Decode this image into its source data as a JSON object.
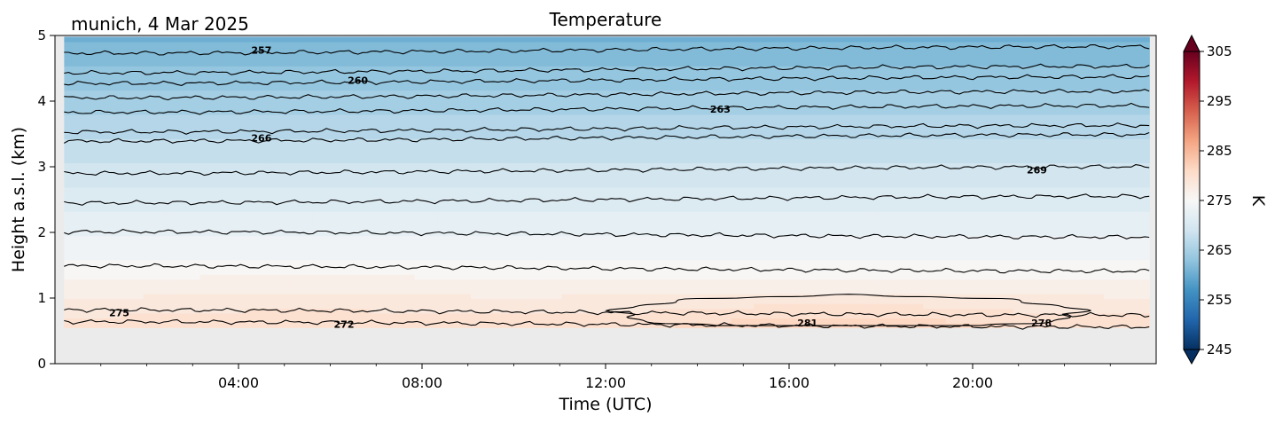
{
  "chart_data": {
    "type": "heatmap",
    "title": "Temperature",
    "subtitle": "munich, 4 Mar 2025",
    "xlabel": "Time (UTC)",
    "ylabel": "Height a.s.l. (km)",
    "x_range_hours": [
      0,
      24
    ],
    "x_ticks": [
      "04:00",
      "08:00",
      "12:00",
      "16:00",
      "20:00"
    ],
    "x_tick_hours": [
      4,
      8,
      12,
      16,
      20
    ],
    "ylim": [
      0,
      5
    ],
    "y_ticks": [
      "0",
      "1",
      "2",
      "3",
      "4",
      "5"
    ],
    "data_bottom_km": 0.55,
    "colorbar": {
      "label": "K",
      "min": 245,
      "max": 305,
      "ticks": [
        "245",
        "255",
        "265",
        "275",
        "285",
        "295",
        "305"
      ],
      "extend": "both",
      "colormap": "RdBu_r"
    },
    "contour_levels": [
      257,
      260,
      263,
      266,
      269,
      272,
      275,
      278,
      281
    ],
    "isotherms": [
      {
        "level": 257,
        "height_km": 4.78,
        "label": "257",
        "label_hour": 4.5
      },
      {
        "level": 258.5,
        "height_km": 4.48,
        "label": "",
        "label_hour": null
      },
      {
        "level": 260,
        "height_km": 4.32,
        "label": "260",
        "label_hour": 6.6
      },
      {
        "level": 261.5,
        "height_km": 4.1,
        "label": "",
        "label_hour": null
      },
      {
        "level": 263,
        "height_km": 3.88,
        "label": "263",
        "label_hour": 14.5
      },
      {
        "level": 264.5,
        "height_km": 3.58,
        "label": "",
        "label_hour": null
      },
      {
        "level": 266,
        "height_km": 3.44,
        "label": "266",
        "label_hour": 4.5
      },
      {
        "level": 269,
        "height_km": 2.95,
        "label": "269",
        "label_hour": 21.4
      },
      {
        "level": 270.5,
        "height_km": 2.5,
        "label": "",
        "label_hour": null
      },
      {
        "level": 272,
        "height_km": 1.97,
        "label": "",
        "label_hour": null
      },
      {
        "level": 273.5,
        "height_km": 1.45,
        "label": "",
        "label_hour": null
      },
      {
        "level": 275,
        "height_km": 0.78,
        "label": "275",
        "label_hour": 1.4
      },
      {
        "level": 272,
        "height_km": 0.6,
        "label": "272",
        "label_hour": 6.3
      }
    ],
    "warm_region": {
      "level": 281,
      "label": "281",
      "label_hour": 16.4,
      "label_height_km": 0.62
    },
    "near_surface_label": {
      "level": 278,
      "label": "278",
      "label_hour": 21.5,
      "label_height_km": 0.62
    },
    "background_color": "#ebebeb"
  }
}
